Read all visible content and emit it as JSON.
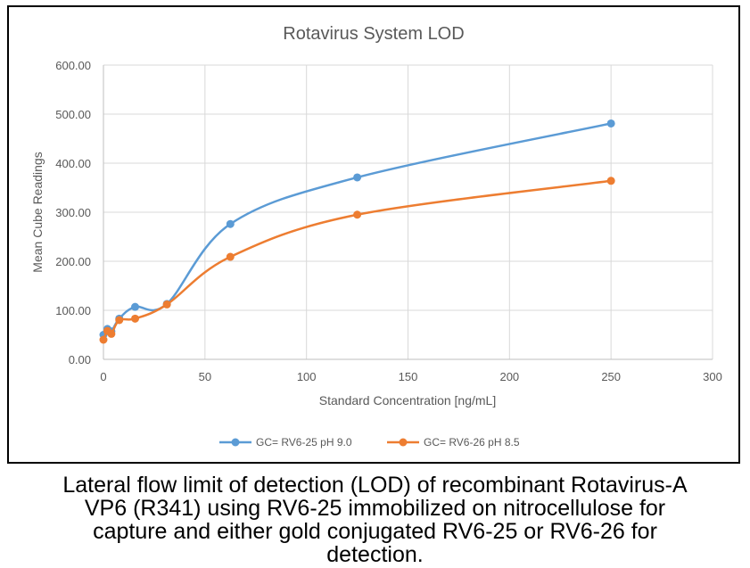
{
  "chart_data": {
    "type": "line",
    "title": "Rotavirus System LOD",
    "xlabel": "Standard Concentration [ng/mL]",
    "ylabel": "Mean Cube Readings",
    "xlim": [
      0,
      300
    ],
    "ylim": [
      0,
      600
    ],
    "x_ticks": [
      "0",
      "50",
      "100",
      "150",
      "200",
      "250",
      "300"
    ],
    "y_ticks": [
      "0.00",
      "100.00",
      "200.00",
      "300.00",
      "400.00",
      "500.00",
      "600.00"
    ],
    "grid": true,
    "legend_position": "bottom",
    "smoothed": true,
    "series": [
      {
        "name": "GC= RV6-25 pH 9.0",
        "color": "#5b9bd5",
        "points": [
          {
            "x": 0,
            "y": 50
          },
          {
            "x": 1.95,
            "y": 62
          },
          {
            "x": 3.9,
            "y": 57
          },
          {
            "x": 7.8,
            "y": 83
          },
          {
            "x": 15.6,
            "y": 107
          },
          {
            "x": 31.25,
            "y": 113
          },
          {
            "x": 62.5,
            "y": 276
          },
          {
            "x": 125,
            "y": 371
          },
          {
            "x": 250,
            "y": 481
          }
        ]
      },
      {
        "name": "GC= RV6-26 pH 8.5",
        "color": "#ed7d31",
        "points": [
          {
            "x": 0,
            "y": 40
          },
          {
            "x": 1.95,
            "y": 58
          },
          {
            "x": 3.9,
            "y": 52
          },
          {
            "x": 7.8,
            "y": 80
          },
          {
            "x": 15.6,
            "y": 83
          },
          {
            "x": 31.25,
            "y": 112
          },
          {
            "x": 62.5,
            "y": 209
          },
          {
            "x": 125,
            "y": 295
          },
          {
            "x": 250,
            "y": 364
          }
        ]
      }
    ]
  },
  "caption": "Lateral flow limit of detection (LOD) of recombinant Rotavirus-A\nVP6 (R341) using RV6-25 immobilized on nitrocellulose for\ncapture and either gold conjugated RV6-25 or RV6-26 for\ndetection."
}
